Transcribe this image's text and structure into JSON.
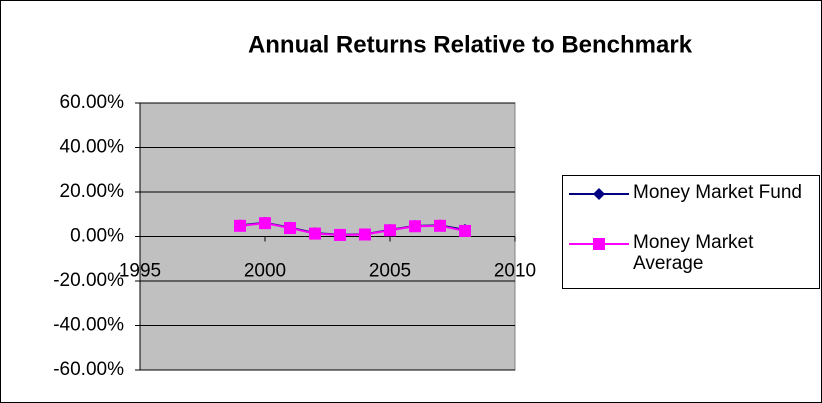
{
  "chart_data": {
    "type": "line",
    "title": "Annual Returns Relative to Benchmark",
    "x": [
      1999,
      2000,
      2001,
      2002,
      2003,
      2004,
      2005,
      2006,
      2007,
      2008
    ],
    "series": [
      {
        "name": "Money Market Fund",
        "color": "#000080",
        "marker": "diamond",
        "values": [
          5.0,
          6.2,
          4.0,
          1.5,
          0.8,
          1.0,
          3.0,
          4.8,
          5.0,
          3.0
        ]
      },
      {
        "name": "Money Market Average",
        "color": "#ff00ff",
        "marker": "square",
        "values": [
          4.8,
          6.0,
          3.8,
          1.3,
          0.7,
          0.9,
          2.8,
          4.6,
          4.8,
          2.5
        ]
      }
    ],
    "xlim": [
      1995,
      2010
    ],
    "xticks": [
      1995,
      2000,
      2005,
      2010
    ],
    "ylim": [
      -60,
      60
    ],
    "yticks": [
      {
        "value": -60,
        "label": "-60.00%"
      },
      {
        "value": -40,
        "label": "-40.00%"
      },
      {
        "value": -20,
        "label": "-20.00%"
      },
      {
        "value": 0,
        "label": "0.00%"
      },
      {
        "value": 20,
        "label": "20.00%"
      },
      {
        "value": 40,
        "label": "40.00%"
      },
      {
        "value": 60,
        "label": "60.00%"
      }
    ],
    "grid": true,
    "legend": "right",
    "plot_background": "#c0c0c0"
  }
}
